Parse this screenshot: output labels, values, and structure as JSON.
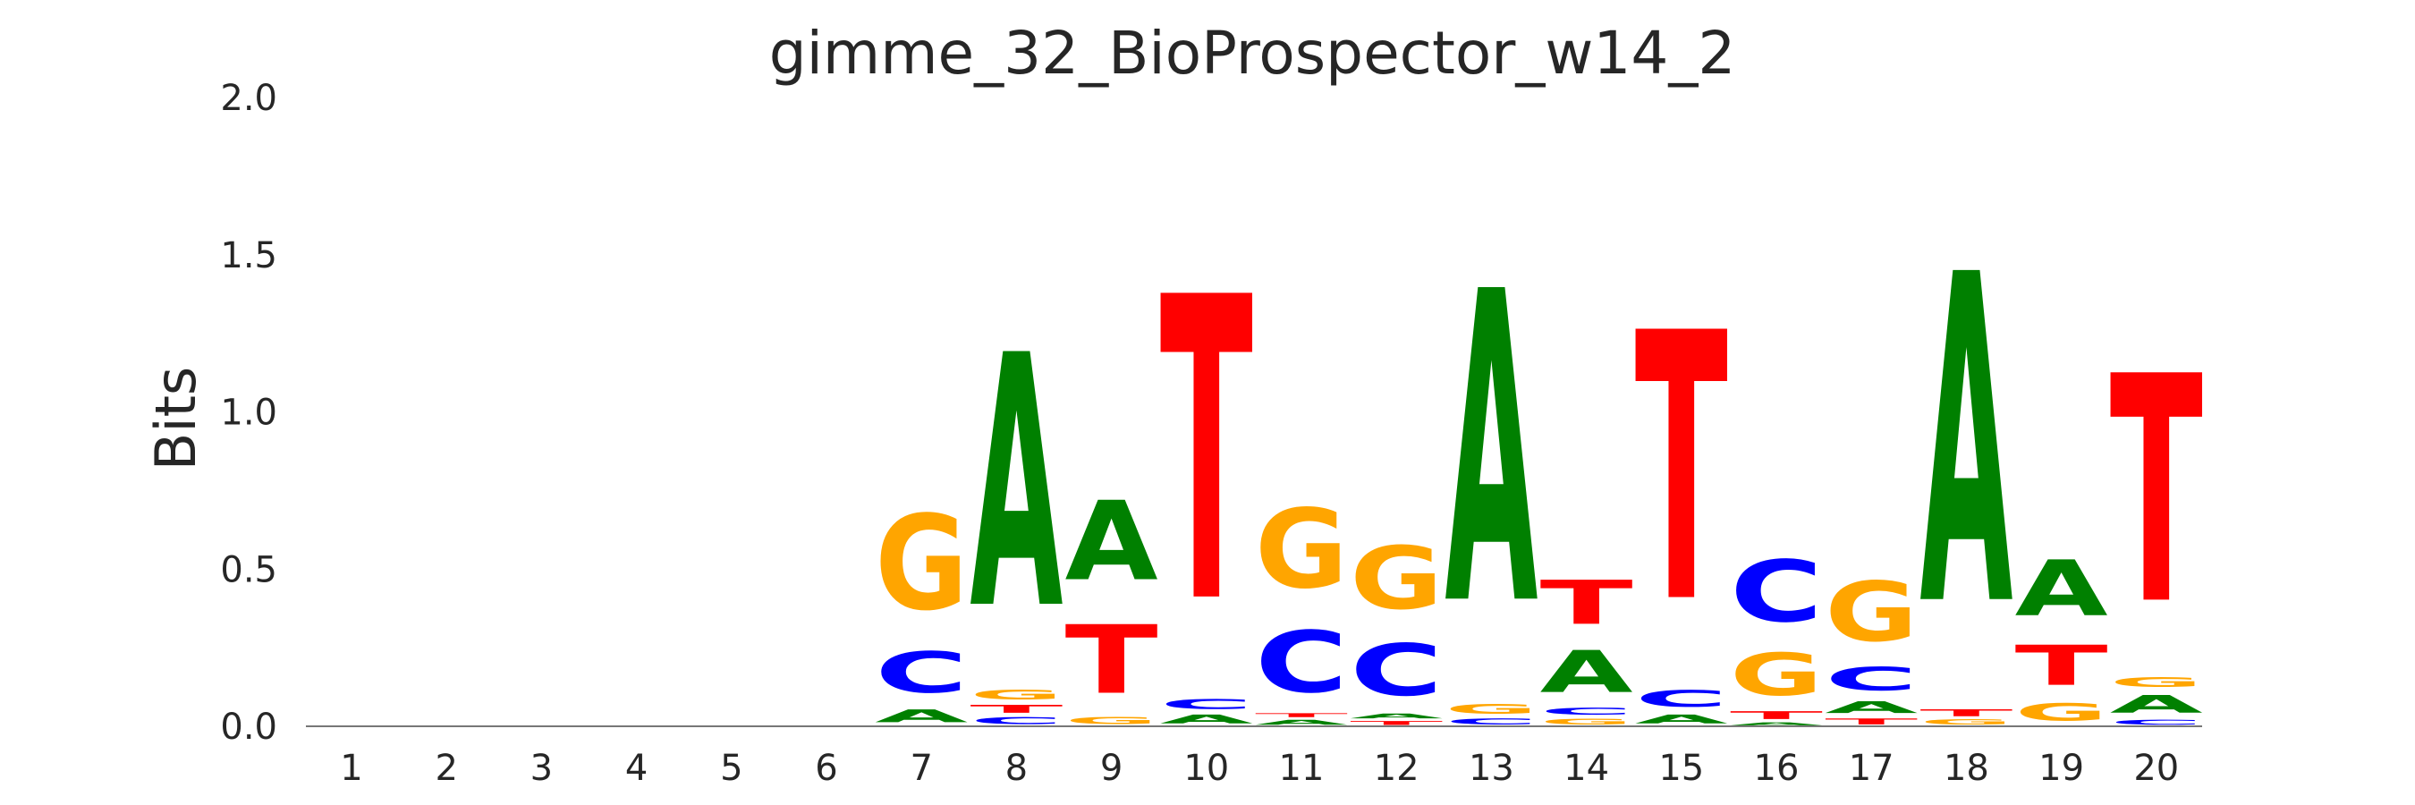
{
  "chart_data": {
    "type": "sequence-logo",
    "title": "gimme_32_BioProspector_w14_2",
    "ylabel": "Bits",
    "ylim": [
      0,
      2.0
    ],
    "yticks": [
      "0.0",
      "0.5",
      "1.0",
      "1.5",
      "2.0"
    ],
    "positions": [
      "1",
      "2",
      "3",
      "4",
      "5",
      "6",
      "7",
      "8",
      "9",
      "10",
      "11",
      "12",
      "13",
      "14",
      "15",
      "16",
      "17",
      "18",
      "19",
      "20"
    ],
    "colors": {
      "A": "#008000",
      "C": "#0000ff",
      "G": "#ffa500",
      "T": "#ff0000"
    },
    "columns": [
      [],
      [],
      [],
      [],
      [],
      [],
      [
        [
          "A",
          0.065
        ],
        [
          "C",
          0.21
        ],
        [
          "G",
          0.485
        ]
      ],
      [
        [
          "C",
          0.035
        ],
        [
          "T",
          0.04
        ],
        [
          "G",
          0.05
        ],
        [
          "A",
          1.29
        ]
      ],
      [
        [
          "G",
          0.035
        ],
        [
          "T",
          0.35
        ],
        [
          "A",
          0.405
        ]
      ],
      [
        [
          "A",
          0.045
        ],
        [
          "C",
          0.05
        ],
        [
          "T",
          1.55
        ]
      ],
      [
        [
          "A",
          0.025
        ],
        [
          "T",
          0.02
        ],
        [
          "C",
          0.315
        ],
        [
          "G",
          0.405
        ]
      ],
      [
        [
          "T",
          0.02
        ],
        [
          "A",
          0.025
        ],
        [
          "C",
          0.265
        ],
        [
          "G",
          0.32
        ]
      ],
      [
        [
          "C",
          0.03
        ],
        [
          "G",
          0.05
        ],
        [
          "A",
          1.59
        ]
      ],
      [
        [
          "G",
          0.03
        ],
        [
          "C",
          0.035
        ],
        [
          "A",
          0.215
        ],
        [
          "T",
          0.225
        ]
      ],
      [
        [
          "A",
          0.045
        ],
        [
          "C",
          0.085
        ],
        [
          "T",
          1.37
        ]
      ],
      [
        [
          "A",
          0.015
        ],
        [
          "T",
          0.04
        ],
        [
          "G",
          0.215
        ],
        [
          "C",
          0.315
        ]
      ],
      [
        [
          "T",
          0.03
        ],
        [
          "A",
          0.06
        ],
        [
          "C",
          0.12
        ],
        [
          "G",
          0.305
        ]
      ],
      [
        [
          "G",
          0.025
        ],
        [
          "T",
          0.035
        ],
        [
          "A",
          1.68
        ]
      ],
      [
        [
          "G",
          0.09
        ],
        [
          "T",
          0.205
        ],
        [
          "A",
          0.285
        ]
      ],
      [
        [
          "C",
          0.025
        ],
        [
          "A",
          0.09
        ],
        [
          "G",
          0.05
        ],
        [
          "T",
          1.16
        ]
      ]
    ]
  }
}
